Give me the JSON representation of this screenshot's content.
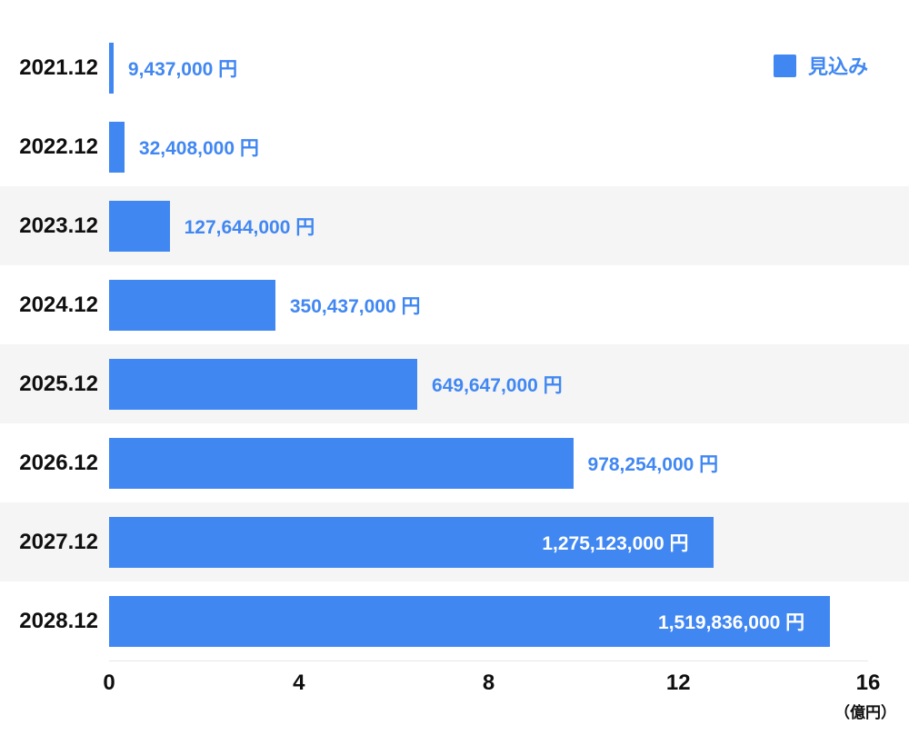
{
  "chart_data": {
    "type": "bar",
    "orientation": "horizontal",
    "title": "",
    "categories": [
      "2021.12",
      "2022.12",
      "2023.12",
      "2024.12",
      "2025.12",
      "2026.12",
      "2027.12",
      "2028.12"
    ],
    "values_yen": [
      9437000,
      32408000,
      127644000,
      350437000,
      649647000,
      978254000,
      1275123000,
      1519836000
    ],
    "value_labels": [
      "9,437,000 円",
      "32,408,000 円",
      "127,644,000 円",
      "350,437,000 円",
      "649,647,000 円",
      "978,254,000 円",
      "1,275,123,000 円",
      "1,519,836,000 円"
    ],
    "x_ticks": [
      "0",
      "4",
      "8",
      "12",
      "16"
    ],
    "xlim": [
      0,
      16
    ],
    "x_unit": "（億円）",
    "legend": [
      {
        "label": "見込み",
        "color": "#4187F2"
      }
    ],
    "legend_position": "top-right",
    "grid": false,
    "bar_color": "#4187F2",
    "value_label_color_outside": "#4187F2",
    "value_label_color_inside": "#ffffff",
    "row_stripe_color": "#f5f5f6"
  }
}
